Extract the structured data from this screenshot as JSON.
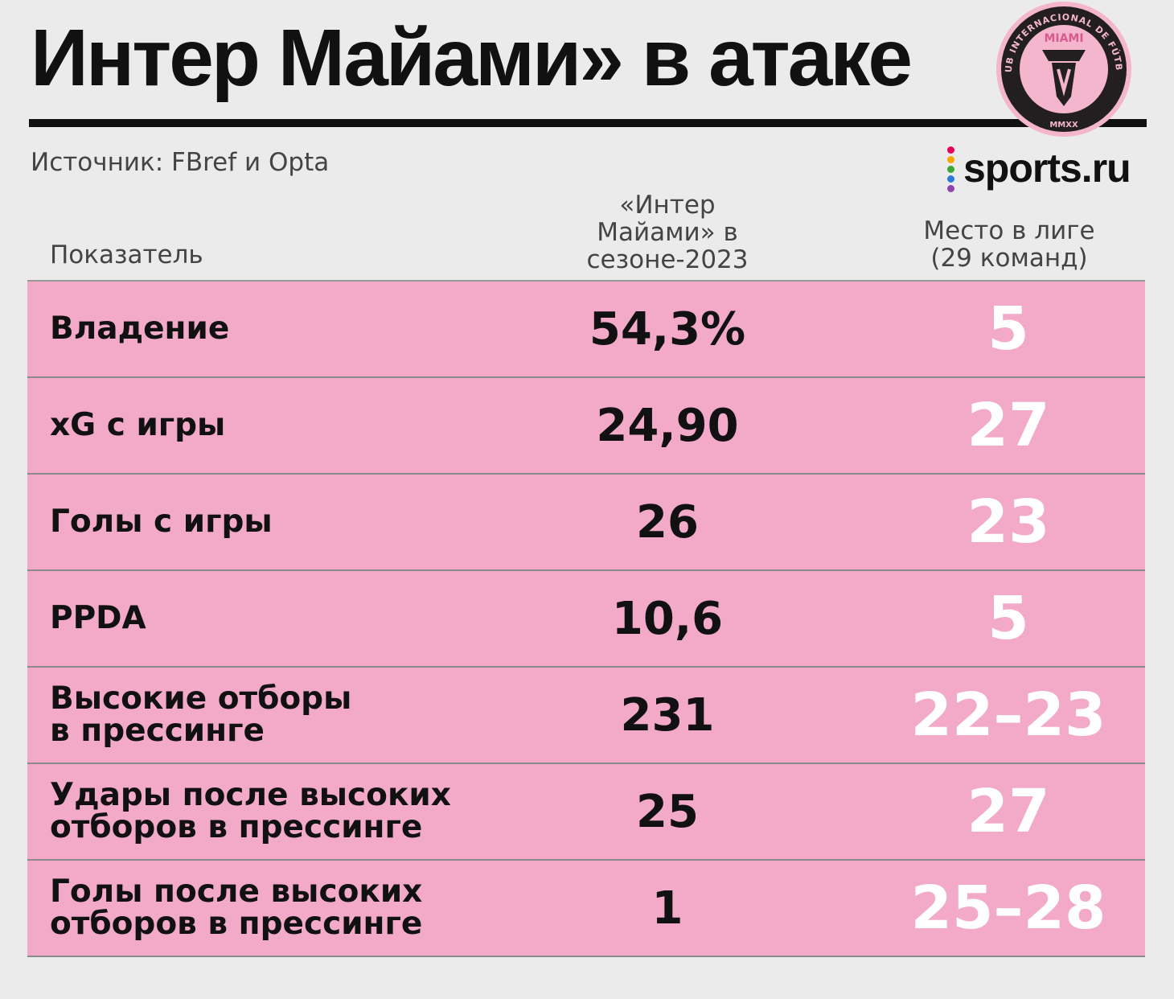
{
  "title": "Интер Майами» в атаке",
  "source": "Источник: FBref  и Opta",
  "brand": {
    "name": "sports.ru",
    "dot_colors": [
      "#e5005b",
      "#f7a600",
      "#3aaa35",
      "#2b7bd6",
      "#8e44ad"
    ]
  },
  "logo": {
    "top_text": "CLUB INTERNACIONAL DE FÚTBOL",
    "name": "MIAMI",
    "bottom_text": "MMXX",
    "colors": {
      "ring": "#231f20",
      "inner": "#f4b6cd",
      "accent": "#d85a8e"
    }
  },
  "colors": {
    "row_background": "#f3a9c8",
    "rank_text": "#ffffff",
    "background": "#ebebeb"
  },
  "chart_data": {
    "type": "table",
    "columns": [
      "Показатель",
      "«Интер Майами» в сезоне-2023",
      "Место в лиге (29 команд)"
    ],
    "column_header_lines": {
      "value": [
        "«Интер",
        "Майами» в",
        "сезоне-2023"
      ],
      "rank": [
        "Место в лиге",
        "(29 команд)"
      ]
    },
    "rows": [
      {
        "metric": "Владение",
        "value": "54,3%",
        "rank": "5"
      },
      {
        "metric": "xG с игры",
        "value": "24,90",
        "rank": "27"
      },
      {
        "metric": "Голы с игры",
        "value": "26",
        "rank": "23"
      },
      {
        "metric": "PPDA",
        "value": "10,6",
        "rank": "5"
      },
      {
        "metric": "Высокие отборы\nв прессинге",
        "value": "231",
        "rank": "22–23"
      },
      {
        "metric": "Удары после высоких\nотборов в прессинге",
        "value": "25",
        "rank": "27"
      },
      {
        "metric": "Голы после высоких\nотборов в прессинге",
        "value": "1",
        "rank": "25–28"
      }
    ]
  }
}
